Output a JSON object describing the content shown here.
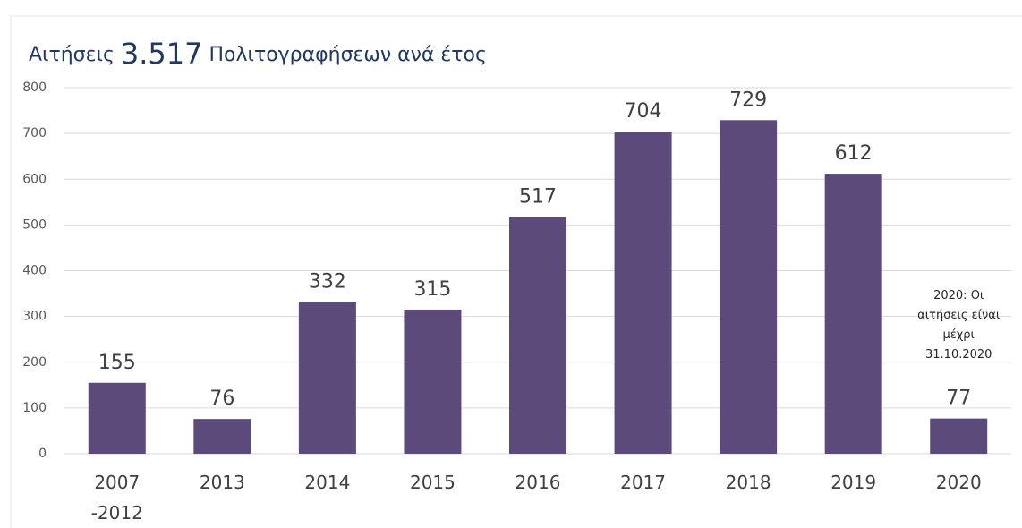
{
  "chart_data": {
    "type": "bar",
    "title": "Αιτήσεις 3.517 Πολιτογραφήσεων ανά έτος",
    "categories": [
      "2007\n-2012",
      "2013",
      "2014",
      "2015",
      "2016",
      "2017",
      "2018",
      "2019",
      "2020"
    ],
    "values": [
      155,
      76,
      332,
      315,
      517,
      704,
      729,
      612,
      77
    ],
    "color": "#5c4a7b",
    "ylim": [
      0,
      800
    ],
    "yticks": [
      0,
      100,
      200,
      300,
      400,
      500,
      600,
      700,
      800
    ],
    "grid": true,
    "annotation": "2020: Οι\nαιτήσεις είναι\nμέχρι\n31.10.2020"
  }
}
